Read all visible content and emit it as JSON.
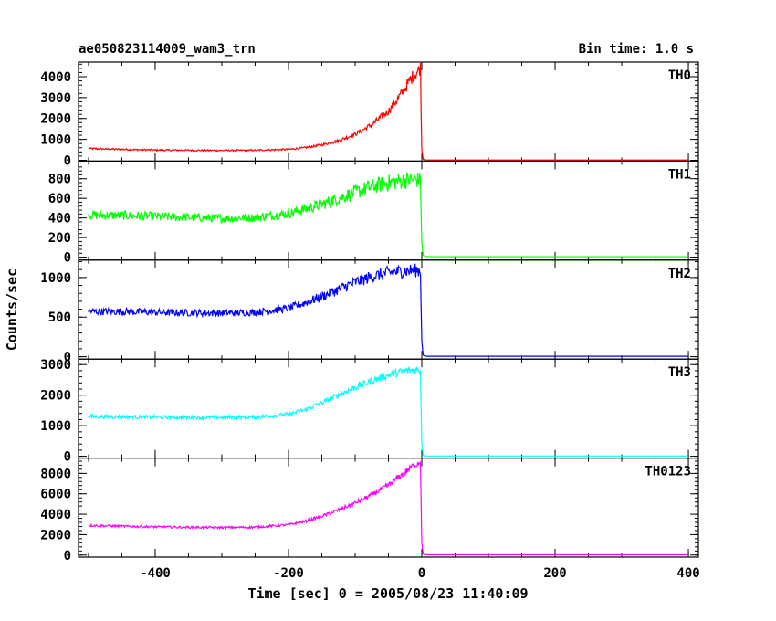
{
  "header": {
    "title": "ae050823114009_wam3_trn",
    "bin_time": "Bin time: 1.0 s"
  },
  "chart_data": {
    "type": "line",
    "title": "ae050823114009_wam3_trn",
    "xlabel": "Time [sec] 0 = 2005/08/23 11:40:09",
    "ylabel": "Counts/sec",
    "xlim": [
      -515,
      415
    ],
    "x_ticks": [
      -400,
      -200,
      0,
      200,
      400
    ],
    "grid": false,
    "panels": [
      {
        "name": "TH0",
        "color": "#ff0000",
        "ylim": [
          -40,
          4700
        ],
        "y_ticks": [
          0,
          1000,
          2000,
          3000,
          4000
        ],
        "x": [
          -500,
          -450,
          -400,
          -350,
          -300,
          -250,
          -200,
          -175,
          -150,
          -125,
          -100,
          -75,
          -50,
          -30,
          -15,
          -5,
          -2,
          0,
          2,
          5,
          10,
          400
        ],
        "values": [
          560,
          520,
          490,
          480,
          470,
          480,
          520,
          600,
          740,
          930,
          1250,
          1700,
          2350,
          3200,
          3950,
          4300,
          4450,
          500,
          50,
          15,
          10,
          10
        ],
        "noise": 0.05
      },
      {
        "name": "TH1",
        "color": "#00ff00",
        "ylim": [
          -30,
          980
        ],
        "y_ticks": [
          0,
          200,
          400,
          600,
          800
        ],
        "x": [
          -500,
          -450,
          -400,
          -350,
          -300,
          -250,
          -200,
          -175,
          -150,
          -125,
          -100,
          -75,
          -50,
          -30,
          -15,
          -5,
          -2,
          0,
          2,
          5,
          10,
          400
        ],
        "values": [
          430,
          425,
          415,
          405,
          395,
          405,
          445,
          490,
          540,
          600,
          660,
          720,
          760,
          780,
          790,
          790,
          780,
          150,
          20,
          8,
          5,
          5
        ],
        "noise": 0.07
      },
      {
        "name": "TH2",
        "color": "#0000ff",
        "ylim": [
          -30,
          1220
        ],
        "y_ticks": [
          0,
          500,
          1000
        ],
        "x": [
          -500,
          -450,
          -400,
          -350,
          -300,
          -250,
          -200,
          -175,
          -150,
          -125,
          -100,
          -75,
          -50,
          -30,
          -15,
          -5,
          -2,
          0,
          2,
          5,
          10,
          400
        ],
        "values": [
          570,
          570,
          560,
          555,
          550,
          560,
          610,
          680,
          760,
          850,
          940,
          1010,
          1060,
          1080,
          1090,
          1090,
          1080,
          200,
          20,
          8,
          5,
          5
        ],
        "noise": 0.05
      },
      {
        "name": "TH3",
        "color": "#00ffff",
        "ylim": [
          -60,
          3180
        ],
        "y_ticks": [
          0,
          1000,
          2000,
          3000
        ],
        "x": [
          -500,
          -450,
          -400,
          -350,
          -300,
          -250,
          -200,
          -175,
          -150,
          -125,
          -100,
          -75,
          -50,
          -30,
          -15,
          -5,
          -2,
          0,
          2,
          5,
          10,
          400
        ],
        "values": [
          1300,
          1290,
          1280,
          1270,
          1270,
          1280,
          1370,
          1520,
          1750,
          2000,
          2250,
          2470,
          2660,
          2770,
          2820,
          2830,
          2800,
          400,
          30,
          10,
          8,
          8
        ],
        "noise": 0.03
      },
      {
        "name": "TH0123",
        "color": "#ff00ff",
        "ylim": [
          -200,
          9500
        ],
        "y_ticks": [
          0,
          2000,
          4000,
          6000,
          8000
        ],
        "x": [
          -500,
          -450,
          -400,
          -350,
          -300,
          -250,
          -200,
          -175,
          -150,
          -125,
          -100,
          -75,
          -50,
          -30,
          -15,
          -5,
          -2,
          0,
          2,
          5,
          10,
          400
        ],
        "values": [
          2900,
          2820,
          2760,
          2720,
          2700,
          2730,
          2960,
          3300,
          3800,
          4400,
          5100,
          5900,
          6850,
          7850,
          8650,
          9050,
          9200,
          1200,
          90,
          40,
          30,
          30
        ],
        "noise": 0.025
      }
    ]
  }
}
